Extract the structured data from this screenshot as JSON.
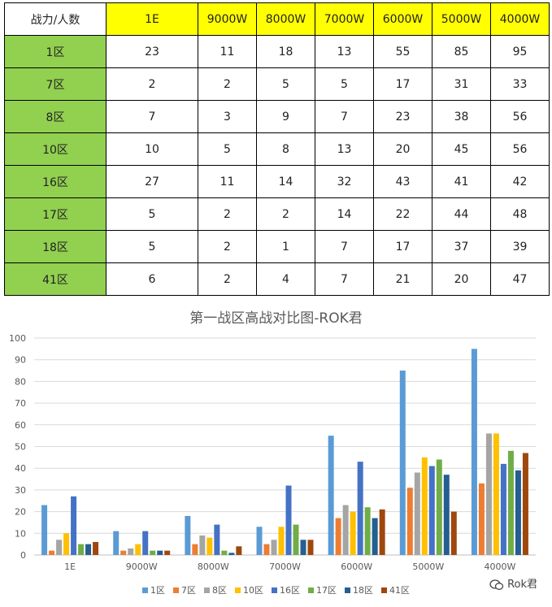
{
  "table": {
    "corner_label": "战力/人数",
    "columns": [
      "1E",
      "9000W",
      "8000W",
      "7000W",
      "6000W",
      "5000W",
      "4000W"
    ],
    "rows": [
      {
        "label": "1区",
        "values": [
          23,
          11,
          18,
          13,
          55,
          85,
          95
        ]
      },
      {
        "label": "7区",
        "values": [
          2,
          2,
          5,
          5,
          17,
          31,
          33
        ]
      },
      {
        "label": "8区",
        "values": [
          7,
          3,
          9,
          7,
          23,
          38,
          56
        ]
      },
      {
        "label": "10区",
        "values": [
          10,
          5,
          8,
          13,
          20,
          45,
          56
        ]
      },
      {
        "label": "16区",
        "values": [
          27,
          11,
          14,
          32,
          43,
          41,
          42
        ]
      },
      {
        "label": "17区",
        "values": [
          5,
          2,
          2,
          14,
          22,
          44,
          48
        ]
      },
      {
        "label": "18区",
        "values": [
          5,
          2,
          1,
          7,
          17,
          37,
          39
        ]
      },
      {
        "label": "41区",
        "values": [
          6,
          2,
          4,
          7,
          21,
          20,
          47
        ]
      }
    ],
    "colors": {
      "header_fill": "#ffff00",
      "row_label_fill": "#92d050"
    }
  },
  "chart_data": {
    "type": "bar",
    "title": "第一战区高战对比图-ROK君",
    "xlabel": "",
    "ylabel": "",
    "categories": [
      "1E",
      "9000W",
      "8000W",
      "7000W",
      "6000W",
      "5000W",
      "4000W"
    ],
    "ylim": [
      0,
      100
    ],
    "yticks": [
      0,
      10,
      20,
      30,
      40,
      50,
      60,
      70,
      80,
      90,
      100
    ],
    "grid": true,
    "legend_position": "bottom",
    "series": [
      {
        "name": "1区",
        "color": "#5b9bd5",
        "values": [
          23,
          11,
          18,
          13,
          55,
          85,
          95
        ]
      },
      {
        "name": "7区",
        "color": "#ed7d31",
        "values": [
          2,
          2,
          5,
          5,
          17,
          31,
          33
        ]
      },
      {
        "name": "8区",
        "color": "#a5a5a5",
        "values": [
          7,
          3,
          9,
          7,
          23,
          38,
          56
        ]
      },
      {
        "name": "10区",
        "color": "#ffc000",
        "values": [
          10,
          5,
          8,
          13,
          20,
          45,
          56
        ]
      },
      {
        "name": "16区",
        "color": "#4472c4",
        "values": [
          27,
          11,
          14,
          32,
          43,
          41,
          42
        ]
      },
      {
        "name": "17区",
        "color": "#70ad47",
        "values": [
          5,
          2,
          2,
          14,
          22,
          44,
          48
        ]
      },
      {
        "name": "18区",
        "color": "#255e91",
        "values": [
          5,
          2,
          1,
          7,
          17,
          37,
          39
        ]
      },
      {
        "name": "41区",
        "color": "#9e480e",
        "values": [
          6,
          2,
          4,
          7,
          21,
          20,
          47
        ]
      }
    ]
  },
  "watermark": {
    "text": "Rok君",
    "icon": "wechat-icon"
  }
}
